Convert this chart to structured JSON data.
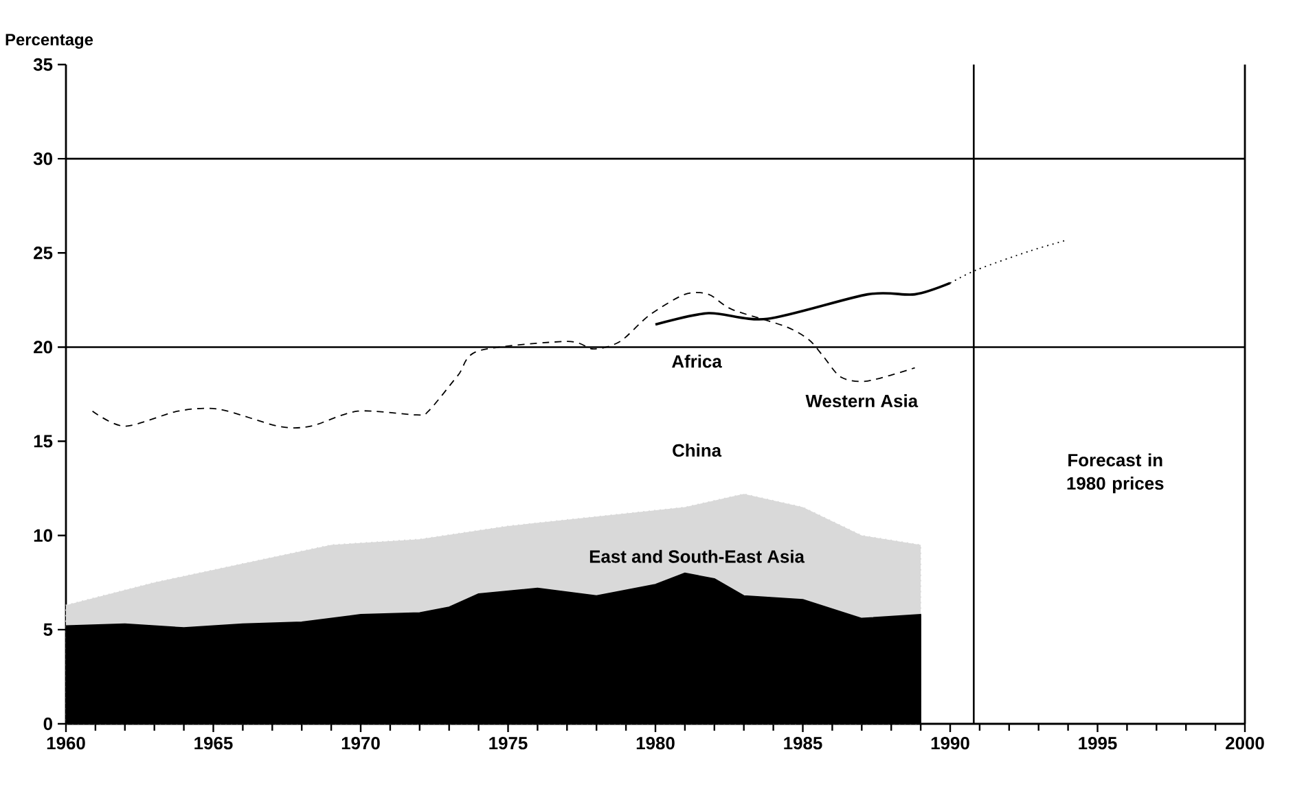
{
  "chart_data": {
    "type": "line",
    "ylabel": "Percentage",
    "xlim": [
      1960,
      2000
    ],
    "xticks": [
      1960,
      1965,
      1970,
      1975,
      1980,
      1985,
      1990,
      1995,
      2000
    ],
    "ylim": [
      0,
      35
    ],
    "yticks": [
      0,
      5,
      10,
      15,
      20,
      25,
      30,
      35
    ],
    "series": [
      {
        "type": "area",
        "name": "China",
        "color": "#d9d9d9",
        "line_style": "dotted",
        "x": [
          1960,
          1963,
          1966,
          1969,
          1972,
          1975,
          1978,
          1981,
          1983,
          1985,
          1987,
          1989
        ],
        "values": [
          6.3,
          7.5,
          8.5,
          9.5,
          9.8,
          10.5,
          11.0,
          11.5,
          12.2,
          11.5,
          10.0,
          9.5
        ]
      },
      {
        "type": "area",
        "name": "East and South-East Asia",
        "color": "#000000",
        "line_style": "solid",
        "x": [
          1960,
          1962,
          1964,
          1966,
          1968,
          1970,
          1972,
          1973,
          1974,
          1976,
          1978,
          1980,
          1981,
          1982,
          1983,
          1985,
          1987,
          1989
        ],
        "values": [
          5.2,
          5.3,
          5.1,
          5.3,
          5.4,
          5.8,
          5.9,
          6.2,
          6.9,
          7.2,
          6.8,
          7.4,
          8.0,
          7.7,
          6.8,
          6.6,
          5.6,
          5.8
        ]
      },
      {
        "name": "Western Asia",
        "color": "#000000",
        "line_style": "dashed",
        "x": [
          1960.9,
          1962,
          1963.8,
          1965.2,
          1967.2,
          1968.3,
          1969.9,
          1971.9,
          1972.3,
          1973.3,
          1974,
          1977,
          1977.9,
          1978.8,
          1979.8,
          1981,
          1981.8,
          1982.6,
          1984.4,
          1985.2,
          1985.7,
          1986.3,
          1987.2,
          1988.8
        ],
        "values": [
          16.6,
          15.8,
          16.6,
          16.7,
          15.8,
          15.8,
          16.6,
          16.4,
          16.6,
          18.5,
          19.8,
          20.3,
          19.9,
          20.3,
          21.7,
          22.8,
          22.8,
          22.0,
          21.1,
          20.4,
          19.5,
          18.4,
          18.2,
          18.9
        ]
      },
      {
        "name": "Africa",
        "color": "#000000",
        "line_style": "solid",
        "x": [
          1980,
          1981.8,
          1983.8,
          1987.2,
          1988.8,
          1990
        ],
        "values": [
          21.2,
          21.8,
          21.5,
          22.8,
          22.8,
          23.4
        ]
      },
      {
        "color": "#000000",
        "line_style": "dotted",
        "x": [
          1990,
          1990.9,
          1992.7,
          1994
        ],
        "values": [
          23.4,
          24.1,
          25.1,
          25.7
        ]
      }
    ],
    "ref_lines": [
      {
        "axis": "y",
        "value": 20,
        "color": "#000000"
      },
      {
        "axis": "y",
        "value": 30,
        "color": "#000000"
      },
      {
        "axis": "x",
        "value": 1990.8,
        "color": "#000000"
      }
    ],
    "annotations": [
      "Forecast in 1980 prices"
    ],
    "grid": false
  }
}
